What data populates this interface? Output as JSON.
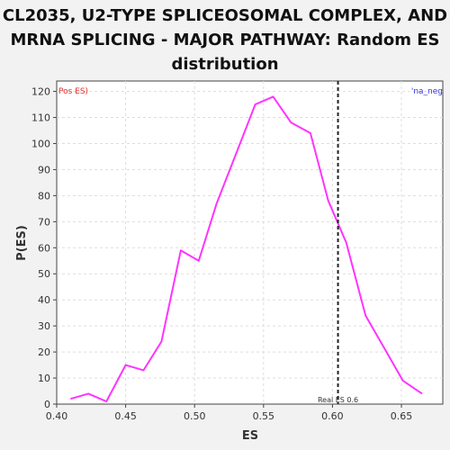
{
  "chart_data": {
    "type": "line",
    "title": "CL2035, U2-TYPE SPLICEOSOMAL COMPLEX, AND MRNA SPLICING - MAJOR PATHWAY: Random ES distribution",
    "xlabel": "ES",
    "ylabel": "P(ES)",
    "xlim": [
      0.4,
      0.68
    ],
    "ylim": [
      0,
      124
    ],
    "x_ticks": [
      0.4,
      0.45,
      0.5,
      0.55,
      0.6,
      0.65
    ],
    "x_tick_labels": [
      "0.40",
      "0.45",
      "0.50",
      "0.55",
      "0.60",
      "0.65"
    ],
    "y_ticks": [
      0,
      10,
      20,
      30,
      40,
      50,
      60,
      70,
      80,
      90,
      100,
      110,
      120
    ],
    "y_tick_labels": [
      "0",
      "10",
      "20",
      "30",
      "40",
      "50",
      "60",
      "70",
      "80",
      "90",
      "100",
      "110",
      "120"
    ],
    "grid": true,
    "series": [
      {
        "color": "#ff33ff",
        "x": [
          0.41,
          0.423,
          0.436,
          0.45,
          0.463,
          0.476,
          0.49,
          0.503,
          0.516,
          0.53,
          0.544,
          0.557,
          0.57,
          0.584,
          0.597,
          0.61,
          0.624,
          0.637,
          0.651,
          0.665
        ],
        "y": [
          2,
          4,
          1,
          15,
          13,
          24,
          59,
          55,
          77,
          96,
          115,
          118,
          108,
          104,
          78,
          62,
          34,
          22,
          9,
          4
        ]
      }
    ],
    "real_es": {
      "x": 0.604,
      "label": "Real ES 0.6",
      "color": "#222222"
    },
    "corner_labels": {
      "left": "Pos ES)",
      "left_color": "#e03030",
      "right": "'na_neg",
      "right_color": "#3333dd"
    }
  }
}
